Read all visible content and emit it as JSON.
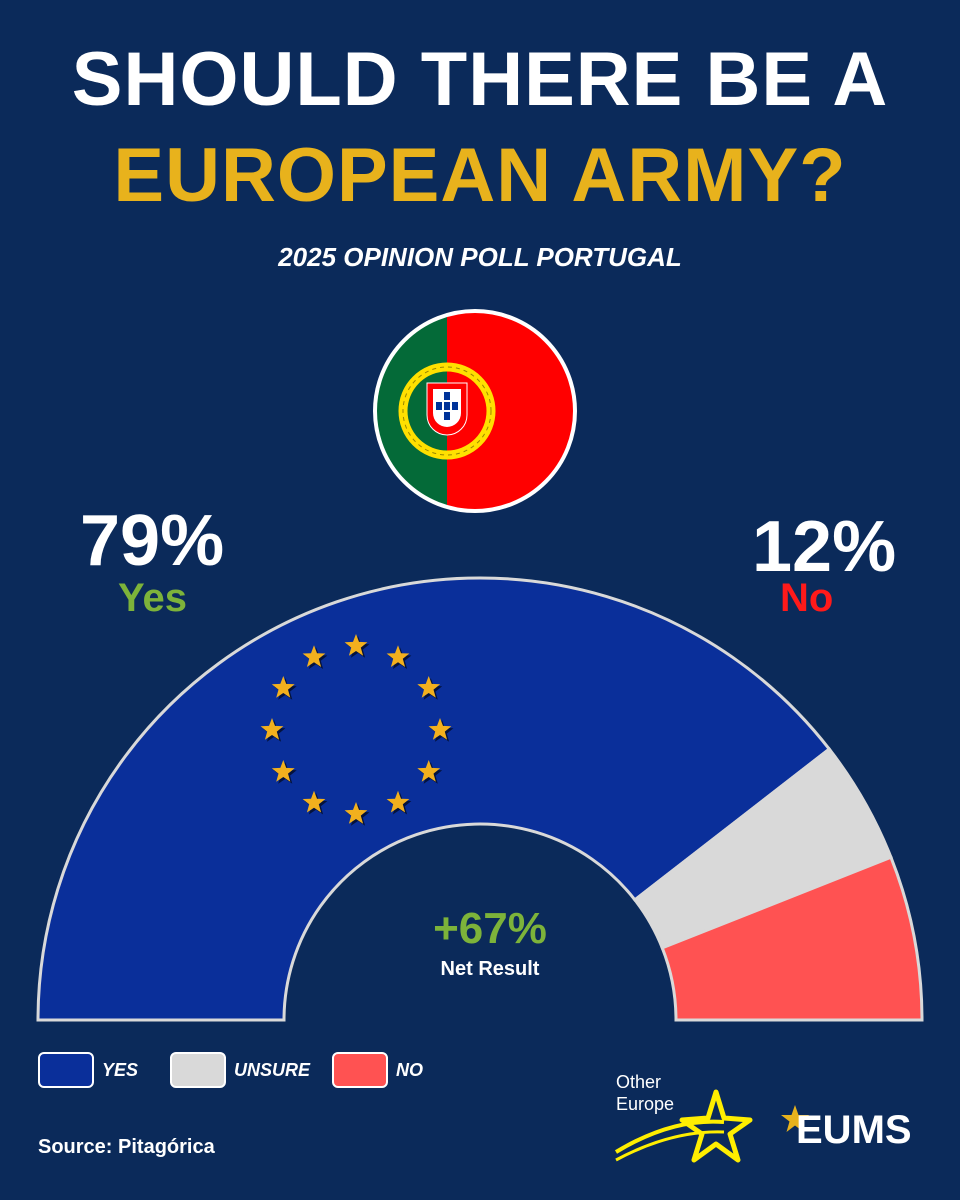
{
  "header": {
    "title_line1": "SHOULD THERE BE A",
    "title_line2": "EUROPEAN ARMY?",
    "subtitle": "2025 OPINION POLL PORTUGAL"
  },
  "flag_icon": "portugal-flag-icon",
  "results": {
    "yes_pct": "79%",
    "yes_label": "Yes",
    "no_pct": "12%",
    "no_label": "No",
    "net_value": "+67%",
    "net_label": "Net Result"
  },
  "legend": {
    "yes": "YES",
    "unsure": "UNSURE",
    "no": "NO"
  },
  "source": "Source: Pitagórica",
  "logos": {
    "other_europe_line1": "Other",
    "other_europe_line2": "Europe",
    "eums": "EUMS"
  },
  "colors": {
    "background": "#0b2a5a",
    "yes": "#0a2f9a",
    "unsure": "#d9d9d9",
    "no": "#ff5252",
    "title_accent": "#e8b21c",
    "yes_text": "#7db33a",
    "no_text": "#ff1a1a"
  },
  "chart_data": {
    "type": "pie",
    "variant": "half-donut",
    "categories": [
      "Yes",
      "Unsure",
      "No"
    ],
    "values": [
      79,
      9,
      12
    ],
    "unit": "%"
  }
}
